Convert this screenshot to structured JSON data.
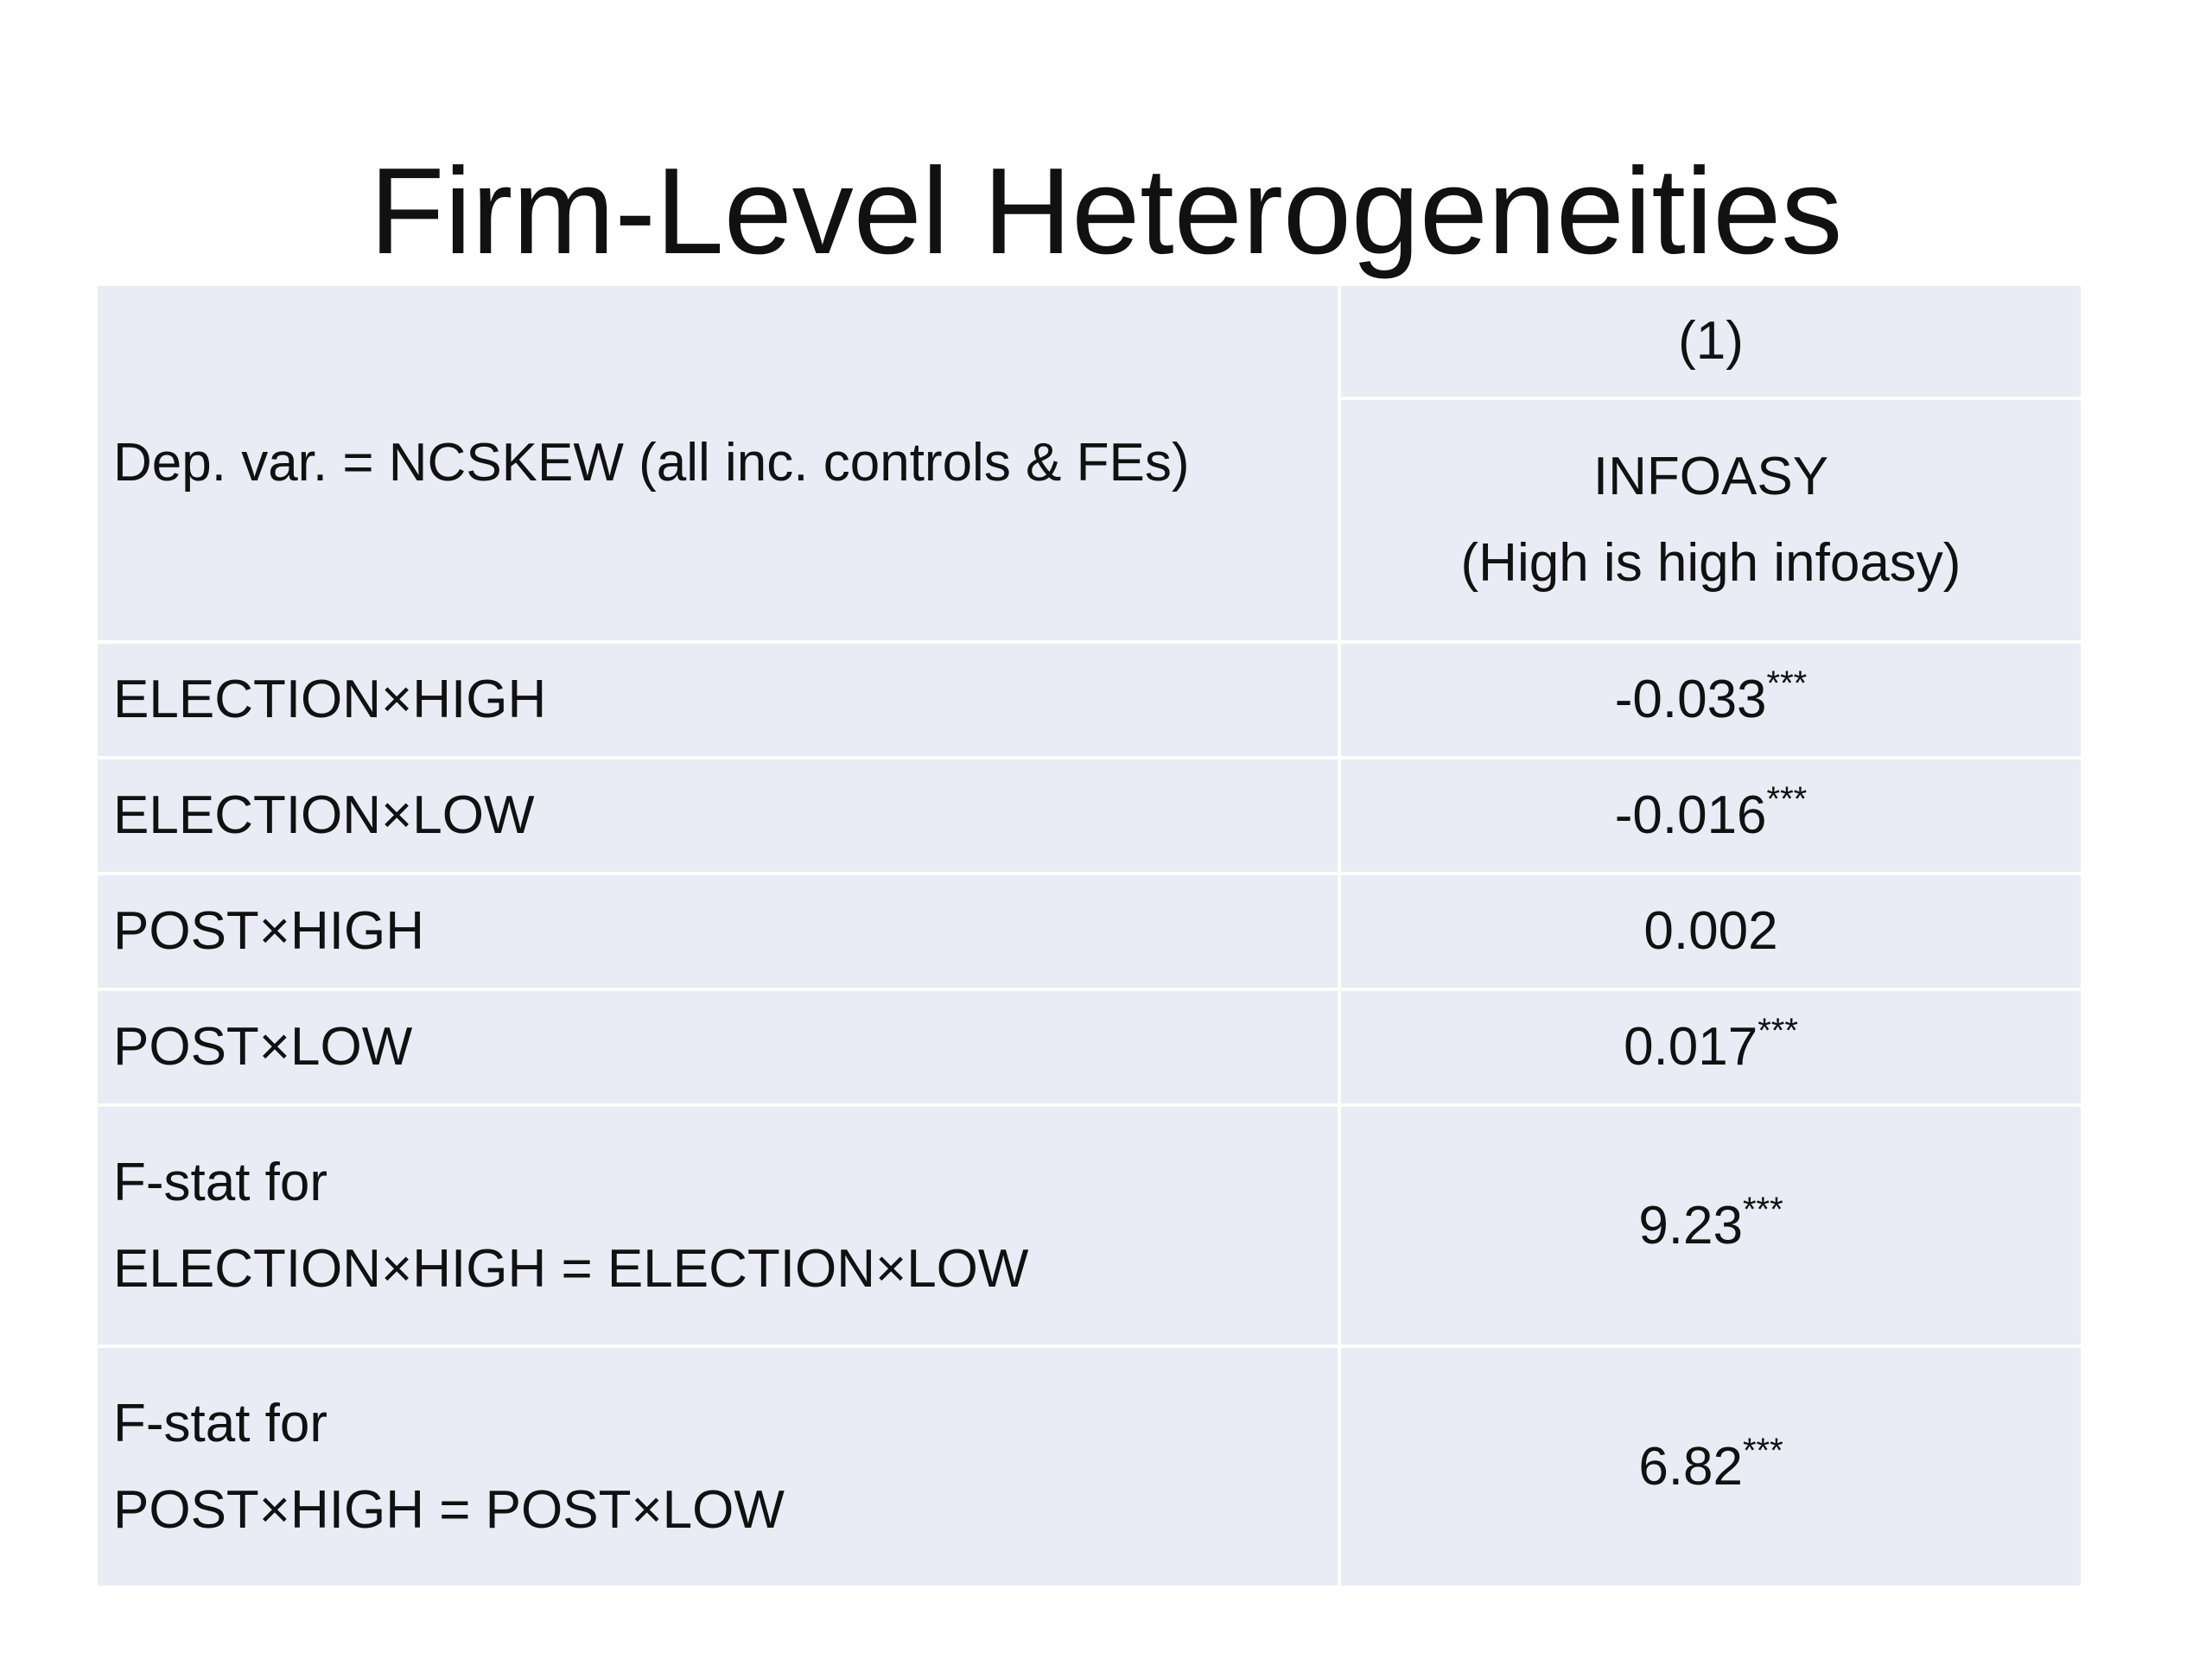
{
  "title": "Firm-Level Heterogeneities",
  "table": {
    "header": {
      "label": "Dep. var. = NCSKEW (all inc. controls & FEs)",
      "column": "(1)",
      "column_name": "INFOASY",
      "column_note": "(High is high infoasy)"
    },
    "rows": [
      {
        "label": [
          "ELECTION×HIGH"
        ],
        "value": "-0.033",
        "stars": "***"
      },
      {
        "label": [
          "ELECTION×LOW"
        ],
        "value": "-0.016",
        "stars": "***"
      },
      {
        "label": [
          "POST×HIGH"
        ],
        "value": "0.002"
      },
      {
        "label": [
          "POST×LOW"
        ],
        "value": "0.017",
        "stars": "***"
      },
      {
        "label": [
          "F-stat for",
          "ELECTION×HIGH = ELECTION×LOW"
        ],
        "value": "9.23",
        "stars": "***"
      },
      {
        "label": [
          "F-stat for",
          "POST×HIGH = POST×LOW"
        ],
        "value": "6.82",
        "stars": "***"
      }
    ]
  }
}
